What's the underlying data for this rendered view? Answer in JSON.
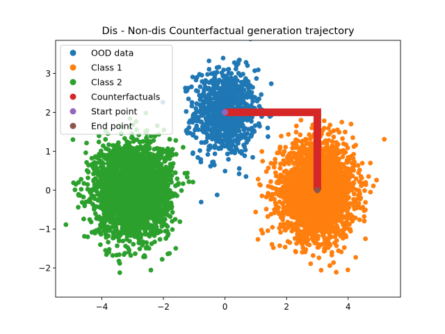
{
  "chart_data": {
    "type": "scatter",
    "title": "Dis - Non-dis Counterfactual generation trajectory",
    "xlabel": "",
    "ylabel": "",
    "xlim": [
      -5.5,
      5.7
    ],
    "ylim": [
      -2.75,
      3.85
    ],
    "xticks": [
      -4,
      -2,
      0,
      2,
      4
    ],
    "yticks": [
      -2,
      -1,
      0,
      1,
      2,
      3
    ],
    "xtick_labels": [
      "−4",
      "−2",
      "0",
      "2",
      "4"
    ],
    "ytick_labels": [
      "−2",
      "−1",
      "0",
      "1",
      "2",
      "3"
    ],
    "legend_position": "upper-left",
    "grid": false,
    "series": [
      {
        "name": "OOD data",
        "kind": "cluster",
        "color": "#1f77b4",
        "center": [
          0,
          2
        ],
        "std": [
          0.5,
          0.55
        ]
      },
      {
        "name": "Class 1",
        "kind": "cluster",
        "color": "#ff7f0e",
        "center": [
          3,
          0
        ],
        "std": [
          0.6,
          0.6
        ]
      },
      {
        "name": "Class 2",
        "kind": "cluster",
        "color": "#2ca02c",
        "center": [
          -3,
          0
        ],
        "std": [
          0.6,
          0.6
        ]
      },
      {
        "name": "Counterfactuals",
        "kind": "trajectory",
        "color": "#d62728",
        "points": [
          [
            0,
            2
          ],
          [
            3,
            2
          ],
          [
            3,
            0
          ]
        ]
      },
      {
        "name": "Start point",
        "kind": "point",
        "color": "#9467bd",
        "points": [
          [
            0,
            2
          ]
        ]
      },
      {
        "name": "End point",
        "kind": "point",
        "color": "#8c564b",
        "points": [
          [
            3,
            0
          ]
        ]
      }
    ]
  }
}
